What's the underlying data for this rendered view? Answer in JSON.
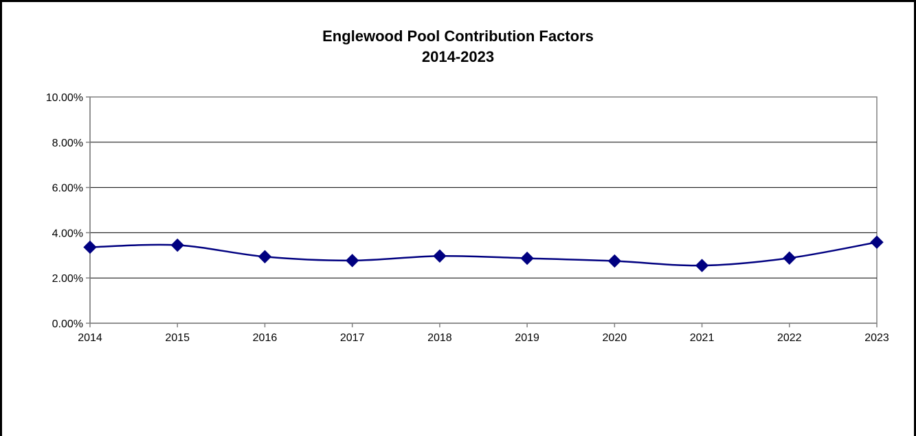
{
  "chart_data": {
    "type": "line",
    "title": "Englewood Pool Contribution Factors",
    "subtitle": "2014-2023",
    "xlabel": "",
    "ylabel": "",
    "x": [
      "2014",
      "2015",
      "2016",
      "2017",
      "2018",
      "2019",
      "2020",
      "2021",
      "2022",
      "2023"
    ],
    "series": [
      {
        "values": [
          3.36,
          3.45,
          2.94,
          2.77,
          2.97,
          2.87,
          2.75,
          2.55,
          2.88,
          3.58
        ]
      }
    ],
    "ylim": [
      0,
      10
    ],
    "y_ticks": [
      0,
      2,
      4,
      6,
      8,
      10
    ],
    "y_tick_labels": [
      "0.00%",
      "2.00%",
      "4.00%",
      "6.00%",
      "8.00%",
      "10.00%"
    ],
    "grid": "horizontal",
    "legend": "none",
    "smoothed": true,
    "marker": "diamond",
    "line_color": "#000080",
    "marker_color": "#000080"
  }
}
